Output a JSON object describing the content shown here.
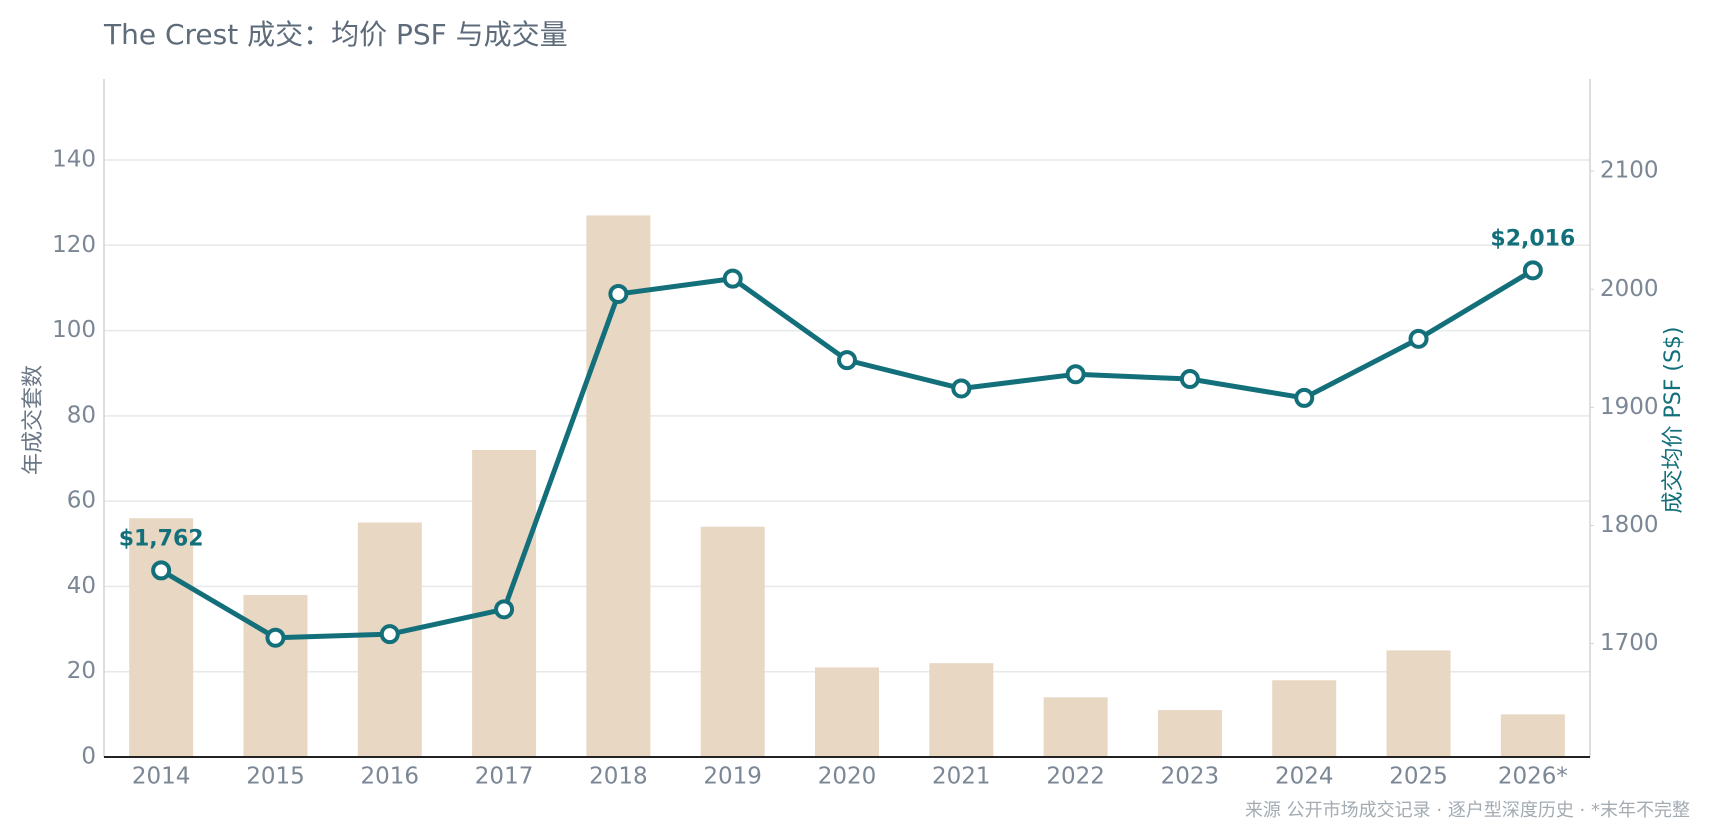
{
  "chart_data": {
    "type": "bar-line",
    "title": "The Crest 成交：均价 PSF 与成交量",
    "footnote": "来源 公开市场成交记录 · 逐户型深度历史 · *末年不完整",
    "y_label": "年成交套数",
    "y2_label": "成交均价 PSF (S$)",
    "categories": [
      "2014",
      "2015",
      "2016",
      "2017",
      "2018",
      "2019",
      "2020",
      "2021",
      "2022",
      "2023",
      "2024",
      "2025",
      "2026*"
    ],
    "series": [
      {
        "type": "bar",
        "axis": "y",
        "color": "#e8d7c3",
        "values": [
          56,
          38,
          55,
          72,
          127,
          54,
          21,
          22,
          14,
          11,
          18,
          25,
          10
        ]
      },
      {
        "type": "line",
        "axis": "y2",
        "color": "#13707a",
        "values": [
          1762,
          1705,
          1708,
          1729,
          1996,
          2009,
          1940,
          1916,
          1928,
          1924,
          1908,
          1958,
          2016
        ],
        "value_labels": [
          "$1,762",
          null,
          null,
          null,
          null,
          null,
          null,
          null,
          null,
          null,
          null,
          null,
          "$2,016"
        ]
      }
    ],
    "ylim": [
      0,
      159
    ],
    "yticks": [
      0,
      20,
      40,
      60,
      80,
      100,
      120,
      140
    ],
    "y2lim": [
      1604,
      2178
    ],
    "y2ticks": [
      1700,
      1800,
      1900,
      2000,
      2100
    ],
    "grid": true
  }
}
